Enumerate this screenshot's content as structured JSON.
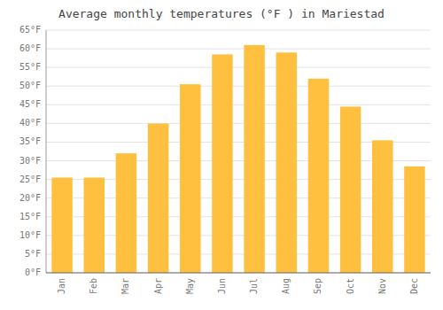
{
  "chart_data": {
    "type": "bar",
    "title": "Average monthly temperatures (°F ) in Mariestad",
    "categories": [
      "Jan",
      "Feb",
      "Mar",
      "Apr",
      "May",
      "Jun",
      "Jul",
      "Aug",
      "Sep",
      "Oct",
      "Nov",
      "Dec"
    ],
    "values": [
      25.5,
      25.5,
      32,
      40,
      50.5,
      58.5,
      61,
      59,
      52,
      44.5,
      35.5,
      28.5
    ],
    "color": "#FFC040",
    "ylim": [
      0,
      65
    ],
    "yticks": [
      {
        "value": 0,
        "label": "0°F"
      },
      {
        "value": 5,
        "label": "5°F"
      },
      {
        "value": 10,
        "label": "10°F"
      },
      {
        "value": 15,
        "label": "15°F"
      },
      {
        "value": 20,
        "label": "20°F"
      },
      {
        "value": 25,
        "label": "25°F"
      },
      {
        "value": 30,
        "label": "30°F"
      },
      {
        "value": 35,
        "label": "35°F"
      },
      {
        "value": 40,
        "label": "40°F"
      },
      {
        "value": 45,
        "label": "45°F"
      },
      {
        "value": 50,
        "label": "50°F"
      },
      {
        "value": 55,
        "label": "55°F"
      },
      {
        "value": 60,
        "label": "60°F"
      },
      {
        "value": 65,
        "label": "65°F"
      }
    ],
    "grid": true
  }
}
